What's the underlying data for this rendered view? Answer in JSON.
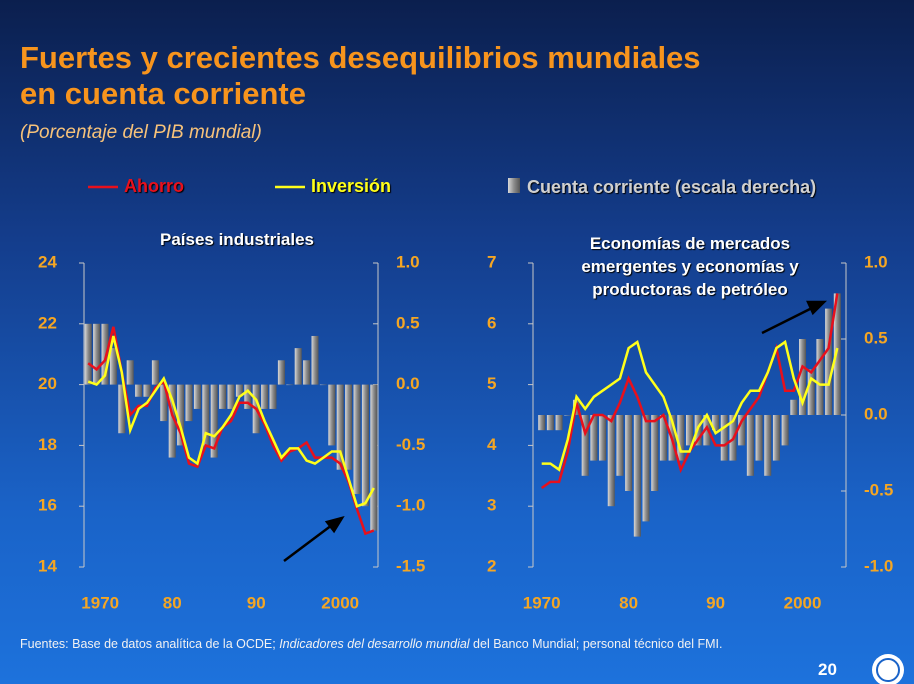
{
  "header": {
    "title": [
      "Fuertes y crecientes desequilibrios mundiales",
      "en cuenta corriente"
    ],
    "subtitle": "(Porcentaje del PIB mundial)"
  },
  "chart_data": [
    {
      "type": "line-bar",
      "title": "Países industriales",
      "x": [
        1970,
        1971,
        1972,
        1973,
        1974,
        1975,
        1976,
        1977,
        1978,
        1979,
        1980,
        1981,
        1982,
        1983,
        1984,
        1985,
        1986,
        1987,
        1988,
        1989,
        1990,
        1991,
        1992,
        1993,
        1994,
        1995,
        1996,
        1997,
        1998,
        1999,
        2000,
        2001,
        2002,
        2003,
        2004
      ],
      "series": [
        {
          "name": "Ahorro",
          "color": "#e8101c",
          "values": [
            20.7,
            20.5,
            20.8,
            21.9,
            20.4,
            19.0,
            19.3,
            19.3,
            19.9,
            20.1,
            19.0,
            18.4,
            17.4,
            17.3,
            18.0,
            17.9,
            18.6,
            18.8,
            19.4,
            19.4,
            19.2,
            18.7,
            18.0,
            17.5,
            17.8,
            17.9,
            18.1,
            17.6,
            17.6,
            17.6,
            17.4,
            16.8,
            15.9,
            15.1,
            15.2
          ]
        },
        {
          "name": "Inversión",
          "color": "#ffff1a",
          "values": [
            20.1,
            20.0,
            20.3,
            21.6,
            20.4,
            18.5,
            19.2,
            19.4,
            19.8,
            20.2,
            19.5,
            18.6,
            17.6,
            17.4,
            18.4,
            18.3,
            18.6,
            19.0,
            19.6,
            19.8,
            19.5,
            18.8,
            18.2,
            17.6,
            17.9,
            17.9,
            17.5,
            17.4,
            17.6,
            17.8,
            17.8,
            16.9,
            16.0,
            16.1,
            16.6
          ]
        },
        {
          "name": "Cuenta corriente (escala derecha)",
          "color": "#a8a8a8",
          "axis": "y2",
          "values": [
            0.5,
            0.5,
            0.5,
            0.3,
            -0.4,
            0.2,
            -0.1,
            -0.1,
            0.2,
            -0.3,
            -0.6,
            -0.5,
            -0.3,
            -0.2,
            -0.5,
            -0.6,
            -0.2,
            -0.2,
            -0.1,
            -0.2,
            -0.4,
            -0.2,
            -0.2,
            0.2,
            0.0,
            0.3,
            0.2,
            0.4,
            0.0,
            -0.5,
            -0.7,
            -0.7,
            -0.9,
            -1.0,
            -1.2
          ]
        }
      ],
      "xlim": [
        1969.5,
        2004.5
      ],
      "xticks": [
        1970,
        {
          "value": 1980,
          "label": "80"
        },
        {
          "value": 1990,
          "label": "90"
        },
        2000
      ],
      "ylim": [
        14,
        24
      ],
      "yticks": [
        14,
        16,
        18,
        20,
        22,
        24
      ],
      "y2lim": [
        -1.5,
        1.0
      ],
      "y2ticks": [
        {
          "value": -1.5,
          "label": "-1.5"
        },
        {
          "value": -1.0,
          "label": "-1.0"
        },
        {
          "value": -0.5,
          "label": "-0.5"
        },
        {
          "value": 0.0,
          "label": "0.0"
        },
        {
          "value": 0.5,
          "label": "0.5"
        },
        {
          "value": 1.0,
          "label": "1.0"
        }
      ]
    },
    {
      "type": "line-bar",
      "title": "Economías de mercados emergentes y economías y productoras de petróleo",
      "x": [
        1970,
        1971,
        1972,
        1973,
        1974,
        1975,
        1976,
        1977,
        1978,
        1979,
        1980,
        1981,
        1982,
        1983,
        1984,
        1985,
        1986,
        1987,
        1988,
        1989,
        1990,
        1991,
        1992,
        1993,
        1994,
        1995,
        1996,
        1997,
        1998,
        1999,
        2000,
        2001,
        2002,
        2003,
        2004
      ],
      "series": [
        {
          "color": "#e8101c",
          "values": [
            3.3,
            3.4,
            3.4,
            3.9,
            4.7,
            4.2,
            4.5,
            4.5,
            4.4,
            4.7,
            5.1,
            4.8,
            4.4,
            4.4,
            4.5,
            4.1,
            3.6,
            3.9,
            4.1,
            4.3,
            4.0,
            4.0,
            4.1,
            4.4,
            4.6,
            4.8,
            5.2,
            5.6,
            4.9,
            4.9,
            5.3,
            5.2,
            5.4,
            5.6,
            6.5
          ]
        },
        {
          "color": "#ffff1a",
          "values": [
            3.7,
            3.7,
            3.6,
            4.1,
            4.8,
            4.6,
            4.8,
            4.9,
            5.0,
            5.1,
            5.6,
            5.7,
            5.2,
            5.0,
            4.8,
            4.4,
            3.9,
            3.9,
            4.3,
            4.5,
            4.2,
            4.3,
            4.4,
            4.7,
            4.9,
            4.9,
            5.2,
            5.6,
            5.7,
            5.1,
            4.7,
            5.1,
            5.0,
            5.0,
            5.6
          ]
        },
        {
          "color": "#a8a8a8",
          "axis": "y2",
          "values": [
            -0.1,
            -0.1,
            -0.1,
            0.0,
            0.1,
            -0.4,
            -0.3,
            -0.3,
            -0.6,
            -0.4,
            -0.5,
            -0.8,
            -0.7,
            -0.5,
            -0.3,
            -0.3,
            -0.3,
            -0.2,
            -0.2,
            -0.2,
            -0.1,
            -0.3,
            -0.3,
            -0.2,
            -0.4,
            -0.3,
            -0.4,
            -0.3,
            -0.2,
            0.1,
            0.5,
            0.3,
            0.5,
            0.7,
            0.8
          ]
        }
      ],
      "xlim": [
        1969,
        2005
      ],
      "xticks": [
        1970,
        {
          "value": 1980,
          "label": "80"
        },
        {
          "value": 1990,
          "label": "90"
        },
        2000
      ],
      "ylim": [
        2,
        7
      ],
      "yticks": [
        2,
        3,
        4,
        5,
        6,
        7
      ],
      "y2lim": [
        -1.0,
        1.0
      ],
      "y2ticks": [
        {
          "value": -1.0,
          "label": "-1.0"
        },
        {
          "value": -0.5,
          "label": "-0.5"
        },
        {
          "value": 0.0,
          "label": "0.0"
        },
        {
          "value": 0.5,
          "label": "0.5"
        },
        {
          "value": 1.0,
          "label": "1.0"
        }
      ]
    }
  ],
  "footer": {
    "source": [
      "Fuentes: Base de datos analítica de la OCDE; ",
      "Indicadores del desarrollo mundial",
      " del Banco Mundial; personal técnico del FMI."
    ],
    "page": "20"
  }
}
